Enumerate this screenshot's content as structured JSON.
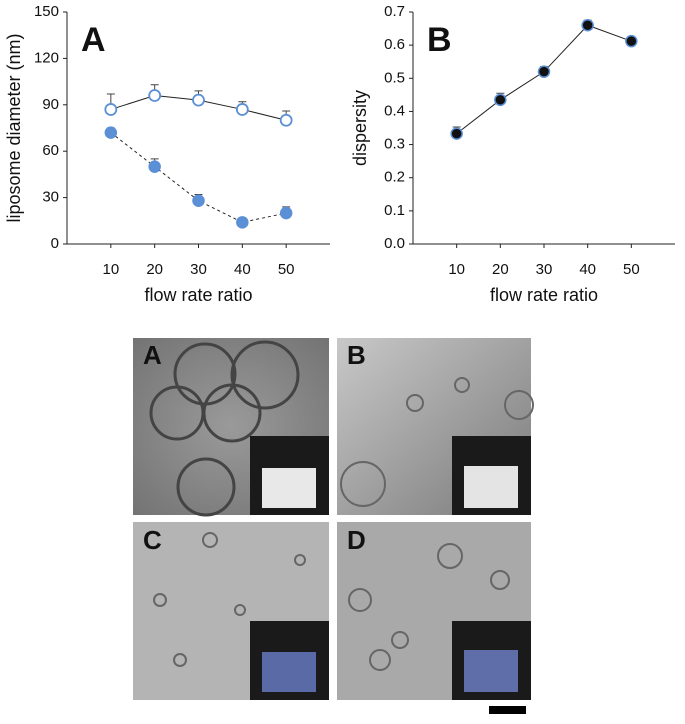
{
  "chart_data": [
    {
      "type": "line",
      "annotation": "A",
      "xlabel": "flow rate ratio",
      "ylabel": "liposome diameter (nm)",
      "x": [
        10,
        20,
        30,
        40,
        50
      ],
      "xlim": [
        0,
        60
      ],
      "xticks": [
        10,
        20,
        30,
        40,
        50
      ],
      "ylim": [
        0,
        150
      ],
      "yticks": [
        0,
        30,
        60,
        90,
        120,
        150
      ],
      "series": [
        {
          "color": "#5b8fd6",
          "markers": "open",
          "line": "solid",
          "values": [
            87,
            96,
            93,
            87,
            80
          ],
          "errors": [
            10,
            7,
            6,
            5,
            6
          ]
        },
        {
          "color": "#5b8fd6",
          "markers": "filled",
          "line": "dashed",
          "values": [
            72,
            50,
            28,
            14,
            20
          ],
          "errors": [
            3,
            5,
            4,
            2,
            4
          ]
        }
      ]
    },
    {
      "type": "line",
      "annotation": "B",
      "xlabel": "flow rate ratio",
      "ylabel": "dispersity",
      "x": [
        10,
        20,
        30,
        40,
        50
      ],
      "xlim": [
        0,
        60
      ],
      "xticks": [
        10,
        20,
        30,
        40,
        50
      ],
      "ylim": [
        0,
        0.7
      ],
      "yticks": [
        {
          "value": 0,
          "label": "0.0"
        },
        0.1,
        0.2,
        0.3,
        0.4,
        0.5,
        0.6,
        0.7
      ],
      "series": [
        {
          "color": "#111111",
          "edge_color": "#5b8fd6",
          "markers": "filled",
          "line": "solid",
          "values": [
            0.333,
            0.435,
            0.52,
            0.66,
            0.612
          ],
          "errors": [
            0.02,
            0.02,
            0.015,
            0.015,
            0.01
          ]
        }
      ]
    }
  ],
  "micrographs": {
    "labels": [
      "A",
      "B",
      "C",
      "D"
    ]
  }
}
